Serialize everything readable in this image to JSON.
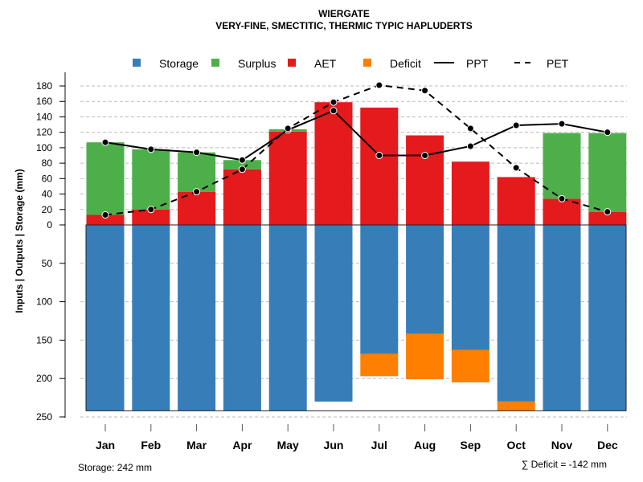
{
  "chart_data": {
    "type": "bar",
    "title": "WIERGATE",
    "subtitle": "VERY-FINE, SMECTITIC, THERMIC TYPIC HAPLUDERTS",
    "ylabel": "Inputs | Outputs | Storage    (mm)",
    "categories": [
      "Jan",
      "Feb",
      "Mar",
      "Apr",
      "May",
      "Jun",
      "Jul",
      "Aug",
      "Sep",
      "Oct",
      "Nov",
      "Dec"
    ],
    "upper_ticks": [
      0,
      20,
      40,
      60,
      80,
      100,
      120,
      140,
      160,
      180
    ],
    "lower_ticks": [
      50,
      100,
      150,
      200,
      250
    ],
    "ylim_upper": [
      0,
      190
    ],
    "ylim_lower": [
      0,
      250
    ],
    "grid": true,
    "legend_position": "top",
    "legend": [
      {
        "label": "Storage",
        "kind": "box",
        "color": "#377EB8"
      },
      {
        "label": "Surplus",
        "kind": "box",
        "color": "#4DAF4A"
      },
      {
        "label": "AET",
        "kind": "box",
        "color": "#E41A1C"
      },
      {
        "label": "Deficit",
        "kind": "box",
        "color": "#FF7F00"
      },
      {
        "label": "PPT",
        "kind": "solid"
      },
      {
        "label": "PET",
        "kind": "dashed"
      }
    ],
    "series": [
      {
        "name": "AET",
        "values": [
          13,
          20,
          43,
          72,
          121,
          159,
          152,
          116,
          82,
          62,
          34,
          17
        ]
      },
      {
        "name": "Surplus",
        "values": [
          94,
          78,
          51,
          12,
          3,
          0,
          0,
          0,
          0,
          0,
          85,
          102
        ]
      },
      {
        "name": "Storage",
        "values": [
          242,
          242,
          242,
          242,
          242,
          230,
          168,
          142,
          163,
          230,
          242,
          242
        ]
      },
      {
        "name": "Deficit",
        "values": [
          0,
          0,
          0,
          0,
          0,
          0,
          29,
          59,
          42,
          12,
          0,
          0
        ]
      },
      {
        "name": "PPT",
        "values": [
          107,
          98,
          94,
          84,
          123,
          148,
          90,
          90,
          102,
          129,
          131,
          120
        ]
      },
      {
        "name": "PET",
        "values": [
          13,
          20,
          43,
          72,
          125,
          159,
          181,
          174,
          125,
          74,
          34,
          17
        ]
      }
    ],
    "storage_note": "Storage: 242 mm",
    "deficit_note": "∑ Deficit = -142 mm",
    "colors": {
      "storage": "#377EB8",
      "surplus": "#4DAF4A",
      "aet": "#E41A1C",
      "deficit": "#FF7F00"
    }
  }
}
